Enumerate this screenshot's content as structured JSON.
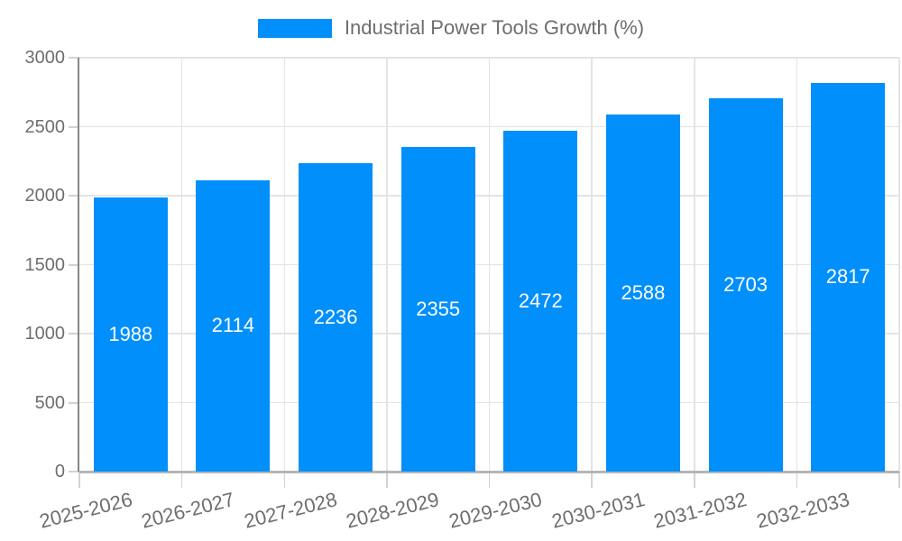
{
  "chart_data": {
    "type": "bar",
    "title": "Industrial Power Tools Growth (%)",
    "categories": [
      "2025-2026",
      "2026-2027",
      "2027-2028",
      "2028-2029",
      "2029-2030",
      "2030-2031",
      "2031-2032",
      "2032-2033"
    ],
    "values": [
      1988,
      2114,
      2236,
      2355,
      2472,
      2588,
      2703,
      2817
    ],
    "xlabel": "",
    "ylabel": "",
    "ylim": [
      0,
      3000
    ],
    "yticks": [
      0,
      500,
      1000,
      1500,
      2000,
      2500,
      3000
    ],
    "grid": true,
    "legend_position": "top",
    "value_labels_position": "bar-center",
    "x_label_rotation_deg": -14,
    "colors": {
      "bar": "#008FFB",
      "grid": "#e4e4e4",
      "axis_y": "#878787",
      "axis_x": "#b5b5b5",
      "tick": "#d2d2d2",
      "text": "#6e6e6e",
      "value_label": "#ffffff",
      "background": "#ffffff"
    }
  }
}
